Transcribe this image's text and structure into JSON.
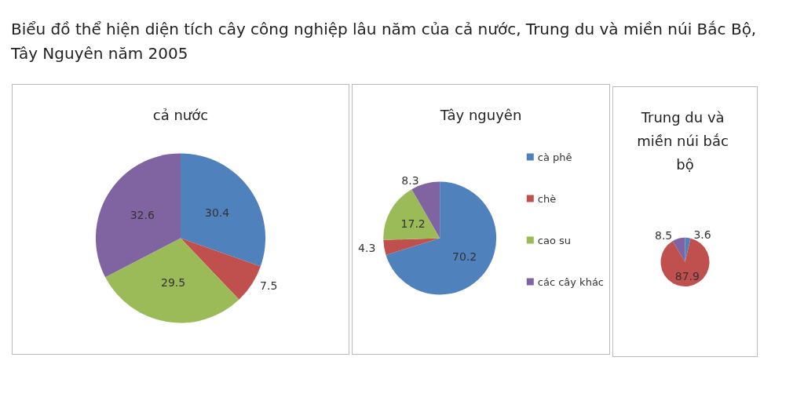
{
  "chart_data": [
    {
      "type": "pie",
      "title": "cả nước",
      "annotations": [
        "Biểu đồ thể hiện diện tích cây công nghiệp lâu năm của cả nước, Trung du và miền núi Bắc Bộ, Tây Nguyên năm 2005"
      ],
      "categories": [
        null,
        null,
        null,
        null
      ],
      "values": [
        30.4,
        7.5,
        29.5,
        32.6
      ],
      "colors": [
        "#4f81bd",
        "#c0504d",
        "#9bbb59",
        "#8064a2"
      ],
      "data_labels": true,
      "legend": false
    },
    {
      "type": "pie",
      "title": "Tây nguyên",
      "categories": [
        "cà phê",
        "chè",
        "cao su",
        "các cây khác"
      ],
      "values": [
        70.2,
        4.3,
        17.2,
        8.3
      ],
      "colors": [
        "#4f81bd",
        "#c0504d",
        "#9bbb59",
        "#8064a2"
      ],
      "data_labels": true,
      "legend": "right"
    },
    {
      "type": "pie",
      "title": "Trung du và miền núi bắc bộ",
      "categories": [
        null,
        null,
        null
      ],
      "values": [
        3.6,
        87.9,
        8.5
      ],
      "colors": [
        "#4f81bd",
        "#c0504d",
        "#8064a2"
      ],
      "data_labels": true,
      "legend": false
    }
  ]
}
